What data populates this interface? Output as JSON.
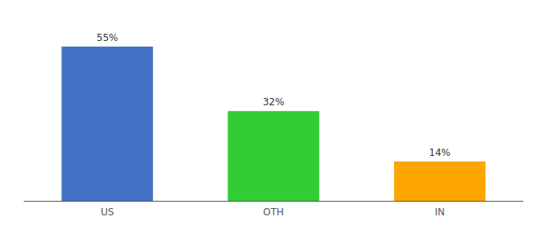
{
  "chart_data": {
    "type": "bar",
    "categories": [
      "US",
      "OTH",
      "IN"
    ],
    "values": [
      55,
      32,
      14
    ],
    "value_labels": [
      "55%",
      "32%",
      "14%"
    ],
    "colors": [
      "#4472C4",
      "#33CC33",
      "#FFA500"
    ],
    "ylim": [
      0,
      63
    ],
    "grid": false,
    "data_labels": true,
    "tick_labels": "x"
  }
}
